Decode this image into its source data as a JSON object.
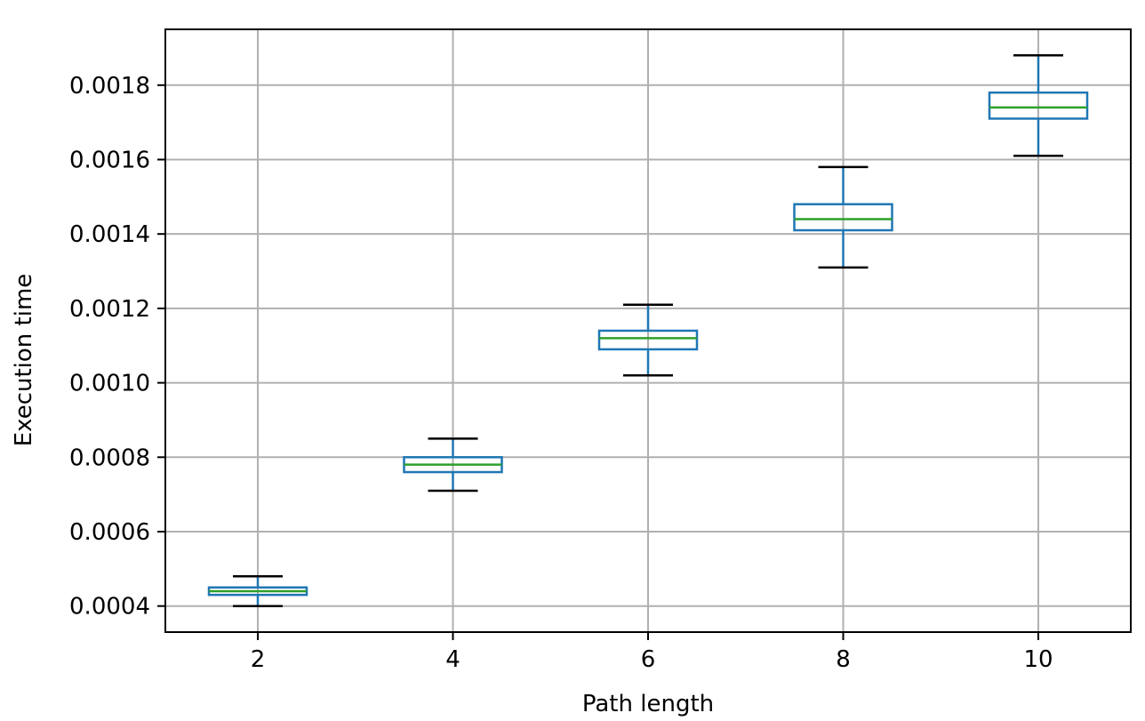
{
  "chart_data": {
    "type": "box",
    "xlabel": "Path length",
    "ylabel": "Execution time",
    "ylim": [
      0.00033,
      0.00195
    ],
    "x_ticks": [
      "2",
      "4",
      "6",
      "8",
      "10"
    ],
    "y_ticks": [
      "0.0004",
      "0.0006",
      "0.0008",
      "0.0010",
      "0.0012",
      "0.0014",
      "0.0016",
      "0.0018"
    ],
    "grid": true,
    "boxes": [
      {
        "x": "2",
        "whisker_low": 0.0004,
        "q1": 0.00043,
        "median": 0.00044,
        "q3": 0.00045,
        "whisker_high": 0.00048
      },
      {
        "x": "4",
        "whisker_low": 0.00071,
        "q1": 0.00076,
        "median": 0.00078,
        "q3": 0.0008,
        "whisker_high": 0.00085
      },
      {
        "x": "6",
        "whisker_low": 0.00102,
        "q1": 0.00109,
        "median": 0.00112,
        "q3": 0.00114,
        "whisker_high": 0.00121
      },
      {
        "x": "8",
        "whisker_low": 0.00131,
        "q1": 0.00141,
        "median": 0.00144,
        "q3": 0.00148,
        "whisker_high": 0.00158
      },
      {
        "x": "10",
        "whisker_low": 0.00161,
        "q1": 0.00171,
        "median": 0.00174,
        "q3": 0.00178,
        "whisker_high": 0.00188
      }
    ],
    "colors": {
      "box": "#1f77b4",
      "median": "#2ca02c",
      "cap": "#000000",
      "grid": "#b0b0b0",
      "axes": "#000000"
    }
  }
}
